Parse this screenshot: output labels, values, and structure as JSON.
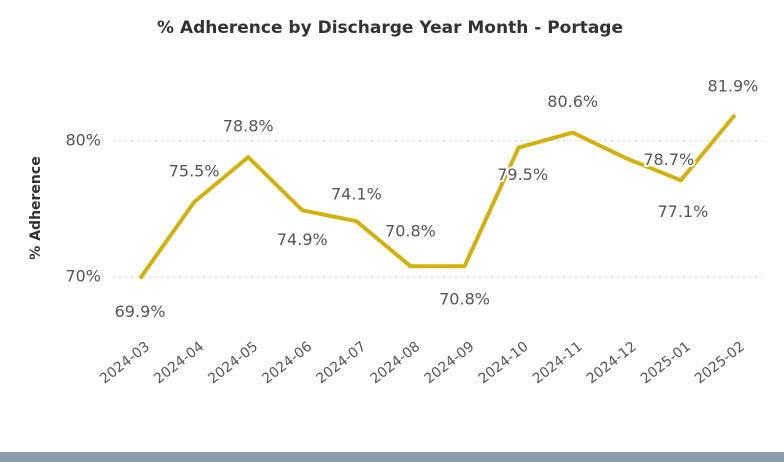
{
  "chart_data": {
    "type": "line",
    "title": "% Adherence by Discharge Year Month - Portage",
    "y_label": "% Adherence",
    "categories": [
      "2024-03",
      "2024-04",
      "2024-05",
      "2024-06",
      "2024-07",
      "2024-08",
      "2024-09",
      "2024-10",
      "2024-11",
      "2024-12",
      "2025-01",
      "2025-02"
    ],
    "series": [
      {
        "name": "% Adherence",
        "color": "#d1b10f",
        "values": [
          69.9,
          75.5,
          78.8,
          74.9,
          74.1,
          70.8,
          70.8,
          79.5,
          80.6,
          78.7,
          77.1,
          81.9
        ],
        "value_labels": [
          "69.9%",
          "75.5%",
          "78.8%",
          "74.9%",
          "74.1%",
          "70.8%",
          "70.8%",
          "79.5%",
          "80.6%",
          "78.7%",
          "77.1%",
          "81.9%"
        ]
      }
    ],
    "ylim": [
      67,
      86
    ],
    "yticks": [
      {
        "value": 70,
        "label": "70%"
      },
      {
        "value": 80,
        "label": "80%"
      }
    ],
    "grid": true
  }
}
